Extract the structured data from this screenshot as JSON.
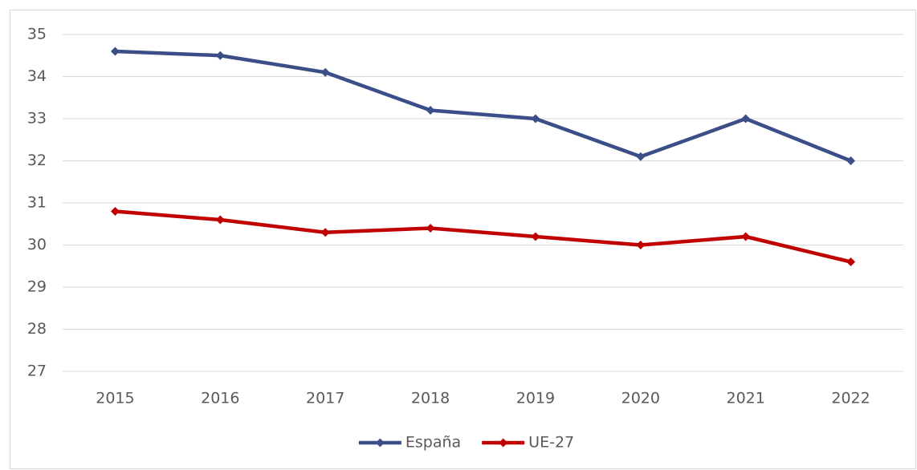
{
  "chart_data": {
    "type": "line",
    "categories": [
      "2015",
      "2016",
      "2017",
      "2018",
      "2019",
      "2020",
      "2021",
      "2022"
    ],
    "series": [
      {
        "name": "España",
        "color": "#3b4e87",
        "values": [
          34.6,
          34.5,
          34.1,
          33.2,
          33.0,
          32.1,
          33.0,
          32.0
        ]
      },
      {
        "name": "UE-27",
        "color": "#c00000",
        "values": [
          30.8,
          30.6,
          30.3,
          30.4,
          30.2,
          30.0,
          30.2,
          29.6
        ]
      }
    ],
    "ylim": [
      27,
      35
    ],
    "yticks": [
      27,
      28,
      29,
      30,
      31,
      32,
      33,
      34,
      35
    ],
    "grid": true,
    "legend": "bottom"
  }
}
